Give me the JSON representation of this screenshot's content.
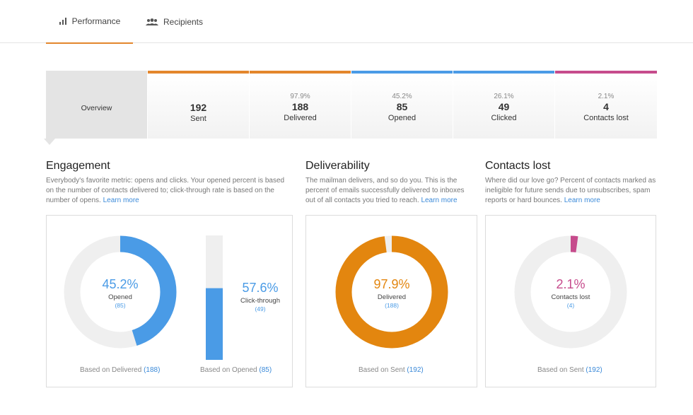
{
  "tabs": [
    {
      "label": "Performance",
      "icon": "bar-chart-icon",
      "active": true
    },
    {
      "label": "Recipients",
      "icon": "people-icon",
      "active": false
    }
  ],
  "stats": {
    "overview": "Overview",
    "sent": {
      "value": "192",
      "label": "Sent",
      "color": "#e3862c"
    },
    "delivered": {
      "pct": "97.9%",
      "value": "188",
      "label": "Delivered",
      "color": "#e3862c"
    },
    "opened": {
      "pct": "45.2%",
      "value": "85",
      "label": "Opened",
      "color": "#4a9be6"
    },
    "clicked": {
      "pct": "26.1%",
      "value": "49",
      "label": "Clicked",
      "color": "#4a9be6"
    },
    "lost": {
      "pct": "2.1%",
      "value": "4",
      "label": "Contacts lost",
      "color": "#c64b8c"
    }
  },
  "engagement": {
    "title": "Engagement",
    "desc": "Everybody's favorite metric: opens and clicks. Your opened percent is based on the number of contacts delivered to; click-through rate is based on the number of opens.",
    "link": "Learn more",
    "opened": {
      "pct": "45.2%",
      "label": "Opened",
      "count": "(85)",
      "fraction": 0.452
    },
    "click": {
      "pct": "57.6%",
      "label": "Click-through",
      "count": "(49)",
      "fraction": 0.576
    },
    "based_delivered": {
      "text": "Based on Delivered",
      "value": "(188)"
    },
    "based_opened": {
      "text": "Based on Opened",
      "value": "(85)"
    }
  },
  "deliverability": {
    "title": "Deliverability",
    "desc": "The mailman delivers, and so do you. This is the percent of emails successfully delivered to inboxes out of all contacts you tried to reach.",
    "link": "Learn more",
    "delivered": {
      "pct": "97.9%",
      "label": "Delivered",
      "count": "(188)",
      "fraction": 0.979
    },
    "based": {
      "text": "Based on Sent",
      "value": "(192)"
    }
  },
  "contacts_lost": {
    "title": "Contacts lost",
    "desc": "Where did our love go? Percent of contacts marked as ineligible for future sends due to unsubscribes, spam reports or hard bounces.",
    "link": "Learn more",
    "lost": {
      "pct": "2.1%",
      "label": "Contacts lost",
      "count": "(4)",
      "fraction": 0.021
    },
    "based": {
      "text": "Based on Sent",
      "value": "(192)"
    }
  },
  "colors": {
    "blue": "#4a9be6",
    "orange": "#e3860f",
    "pink": "#c64b8c",
    "track": "#efefef"
  }
}
